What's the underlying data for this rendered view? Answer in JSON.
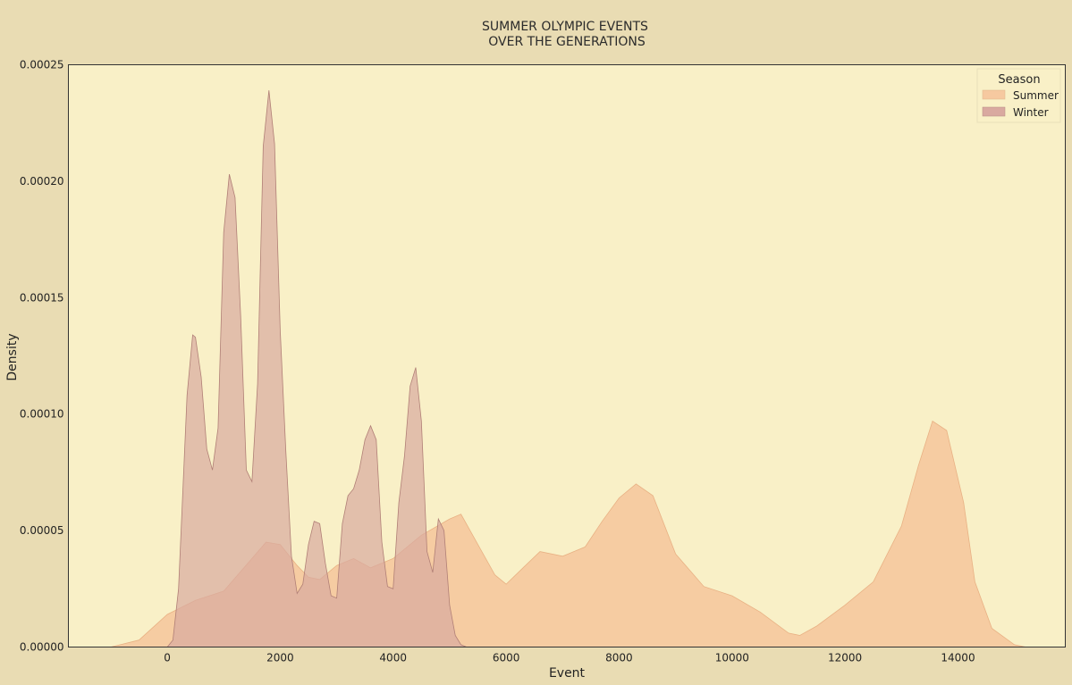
{
  "chart_data": {
    "type": "area",
    "title_lines": [
      "SUMMER OLYMPIC EVENTS",
      "OVER THE GENERATIONS"
    ],
    "xlabel": "Event",
    "ylabel": "Density",
    "xlim": [
      -1750,
      15900
    ],
    "ylim": [
      0,
      0.00025
    ],
    "x_ticks": [
      0,
      2000,
      4000,
      6000,
      8000,
      10000,
      12000,
      14000
    ],
    "x_tick_labels": [
      "0",
      "2000",
      "4000",
      "6000",
      "8000",
      "10000",
      "12000",
      "14000"
    ],
    "y_ticks": [
      0,
      5e-05,
      0.0001,
      0.00015,
      0.0002,
      0.00025
    ],
    "y_tick_labels": [
      "0.00000",
      "0.00005",
      "0.00010",
      "0.00015",
      "0.00020",
      "0.00025"
    ],
    "grid": false,
    "legend": {
      "title": "Season",
      "placement": "top-right"
    },
    "colors": {
      "plot_background": "#f9f0c7",
      "figure_background": "#e9dcb3",
      "summer_fill": "#f6c9a0",
      "winter_fill": "#d9a9a0",
      "axis": "#333333"
    },
    "series": [
      {
        "name": "Summer",
        "x": [
          -1000,
          -500,
          0,
          500,
          1000,
          1500,
          1750,
          2000,
          2300,
          2500,
          2700,
          3000,
          3300,
          3600,
          4000,
          4500,
          5000,
          5200,
          5500,
          5800,
          6000,
          6300,
          6600,
          7000,
          7400,
          7700,
          8000,
          8300,
          8600,
          9000,
          9500,
          10000,
          10500,
          11000,
          11200,
          11500,
          12000,
          12500,
          13000,
          13300,
          13550,
          13800,
          14100,
          14300,
          14600,
          15000,
          15200
        ],
        "y": [
          0,
          3e-06,
          1.4e-05,
          2e-05,
          2.4e-05,
          3.8e-05,
          4.5e-05,
          4.4e-05,
          3.5e-05,
          3e-05,
          2.9e-05,
          3.5e-05,
          3.8e-05,
          3.4e-05,
          3.8e-05,
          4.8e-05,
          5.5e-05,
          5.7e-05,
          4.4e-05,
          3.1e-05,
          2.7e-05,
          3.4e-05,
          4.1e-05,
          3.9e-05,
          4.3e-05,
          5.4e-05,
          6.4e-05,
          7e-05,
          6.5e-05,
          4e-05,
          2.6e-05,
          2.2e-05,
          1.5e-05,
          6e-06,
          5e-06,
          9e-06,
          1.8e-05,
          2.8e-05,
          5.2e-05,
          7.8e-05,
          9.7e-05,
          9.3e-05,
          6.2e-05,
          2.8e-05,
          8e-06,
          1e-06,
          0
        ]
      },
      {
        "name": "Winter",
        "x": [
          0,
          100,
          200,
          300,
          350,
          450,
          500,
          600,
          700,
          800,
          900,
          1000,
          1100,
          1200,
          1300,
          1400,
          1500,
          1600,
          1700,
          1800,
          1900,
          2000,
          2100,
          2200,
          2300,
          2400,
          2500,
          2600,
          2700,
          2800,
          2900,
          3000,
          3100,
          3200,
          3300,
          3400,
          3500,
          3600,
          3700,
          3800,
          3900,
          4000,
          4100,
          4200,
          4300,
          4400,
          4500,
          4600,
          4700,
          4800,
          4900,
          5000,
          5100,
          5200,
          5300
        ],
        "y": [
          0,
          3e-06,
          2.5e-05,
          8e-05,
          0.000108,
          0.000134,
          0.000133,
          0.000116,
          8.5e-05,
          7.6e-05,
          9.4e-05,
          0.000178,
          0.000203,
          0.000193,
          0.000142,
          7.6e-05,
          7.1e-05,
          0.000113,
          0.000215,
          0.000239,
          0.000216,
          0.000136,
          8.4e-05,
          3.9e-05,
          2.3e-05,
          2.7e-05,
          4.4e-05,
          5.4e-05,
          5.3e-05,
          3.6e-05,
          2.2e-05,
          2.1e-05,
          5.3e-05,
          6.5e-05,
          6.8e-05,
          7.6e-05,
          8.9e-05,
          9.5e-05,
          8.9e-05,
          4.5e-05,
          2.6e-05,
          2.5e-05,
          6.2e-05,
          8.2e-05,
          0.000112,
          0.00012,
          9.7e-05,
          4.1e-05,
          3.2e-05,
          5.5e-05,
          5e-05,
          1.8e-05,
          5e-06,
          1e-06,
          0
        ]
      }
    ]
  }
}
